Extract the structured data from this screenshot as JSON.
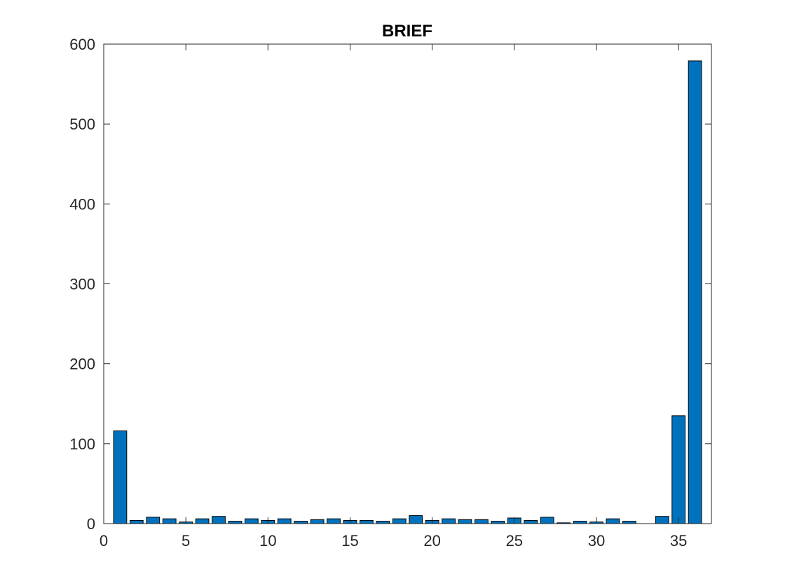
{
  "chart_data": {
    "type": "bar",
    "title": "BRIEF",
    "xlabel": "",
    "ylabel": "",
    "xlim": [
      0,
      37
    ],
    "ylim": [
      0,
      600
    ],
    "xticks": [
      0,
      5,
      10,
      15,
      20,
      25,
      30,
      35
    ],
    "yticks": [
      0,
      100,
      200,
      300,
      400,
      500,
      600
    ],
    "x": [
      1,
      2,
      3,
      4,
      5,
      6,
      7,
      8,
      9,
      10,
      11,
      12,
      13,
      14,
      15,
      16,
      17,
      18,
      19,
      20,
      21,
      22,
      23,
      24,
      25,
      26,
      27,
      28,
      29,
      30,
      31,
      32,
      33,
      34,
      35,
      36
    ],
    "values": [
      116,
      4,
      8,
      6,
      2,
      6,
      9,
      3,
      6,
      4,
      6,
      3,
      5,
      6,
      4,
      4,
      3,
      6,
      10,
      4,
      6,
      5,
      5,
      3,
      7,
      4,
      8,
      1,
      3,
      2,
      6,
      3,
      0,
      9,
      135,
      579
    ],
    "bar_color": "#0072BD",
    "edge_color": "#000000",
    "grid": false,
    "box": true
  }
}
